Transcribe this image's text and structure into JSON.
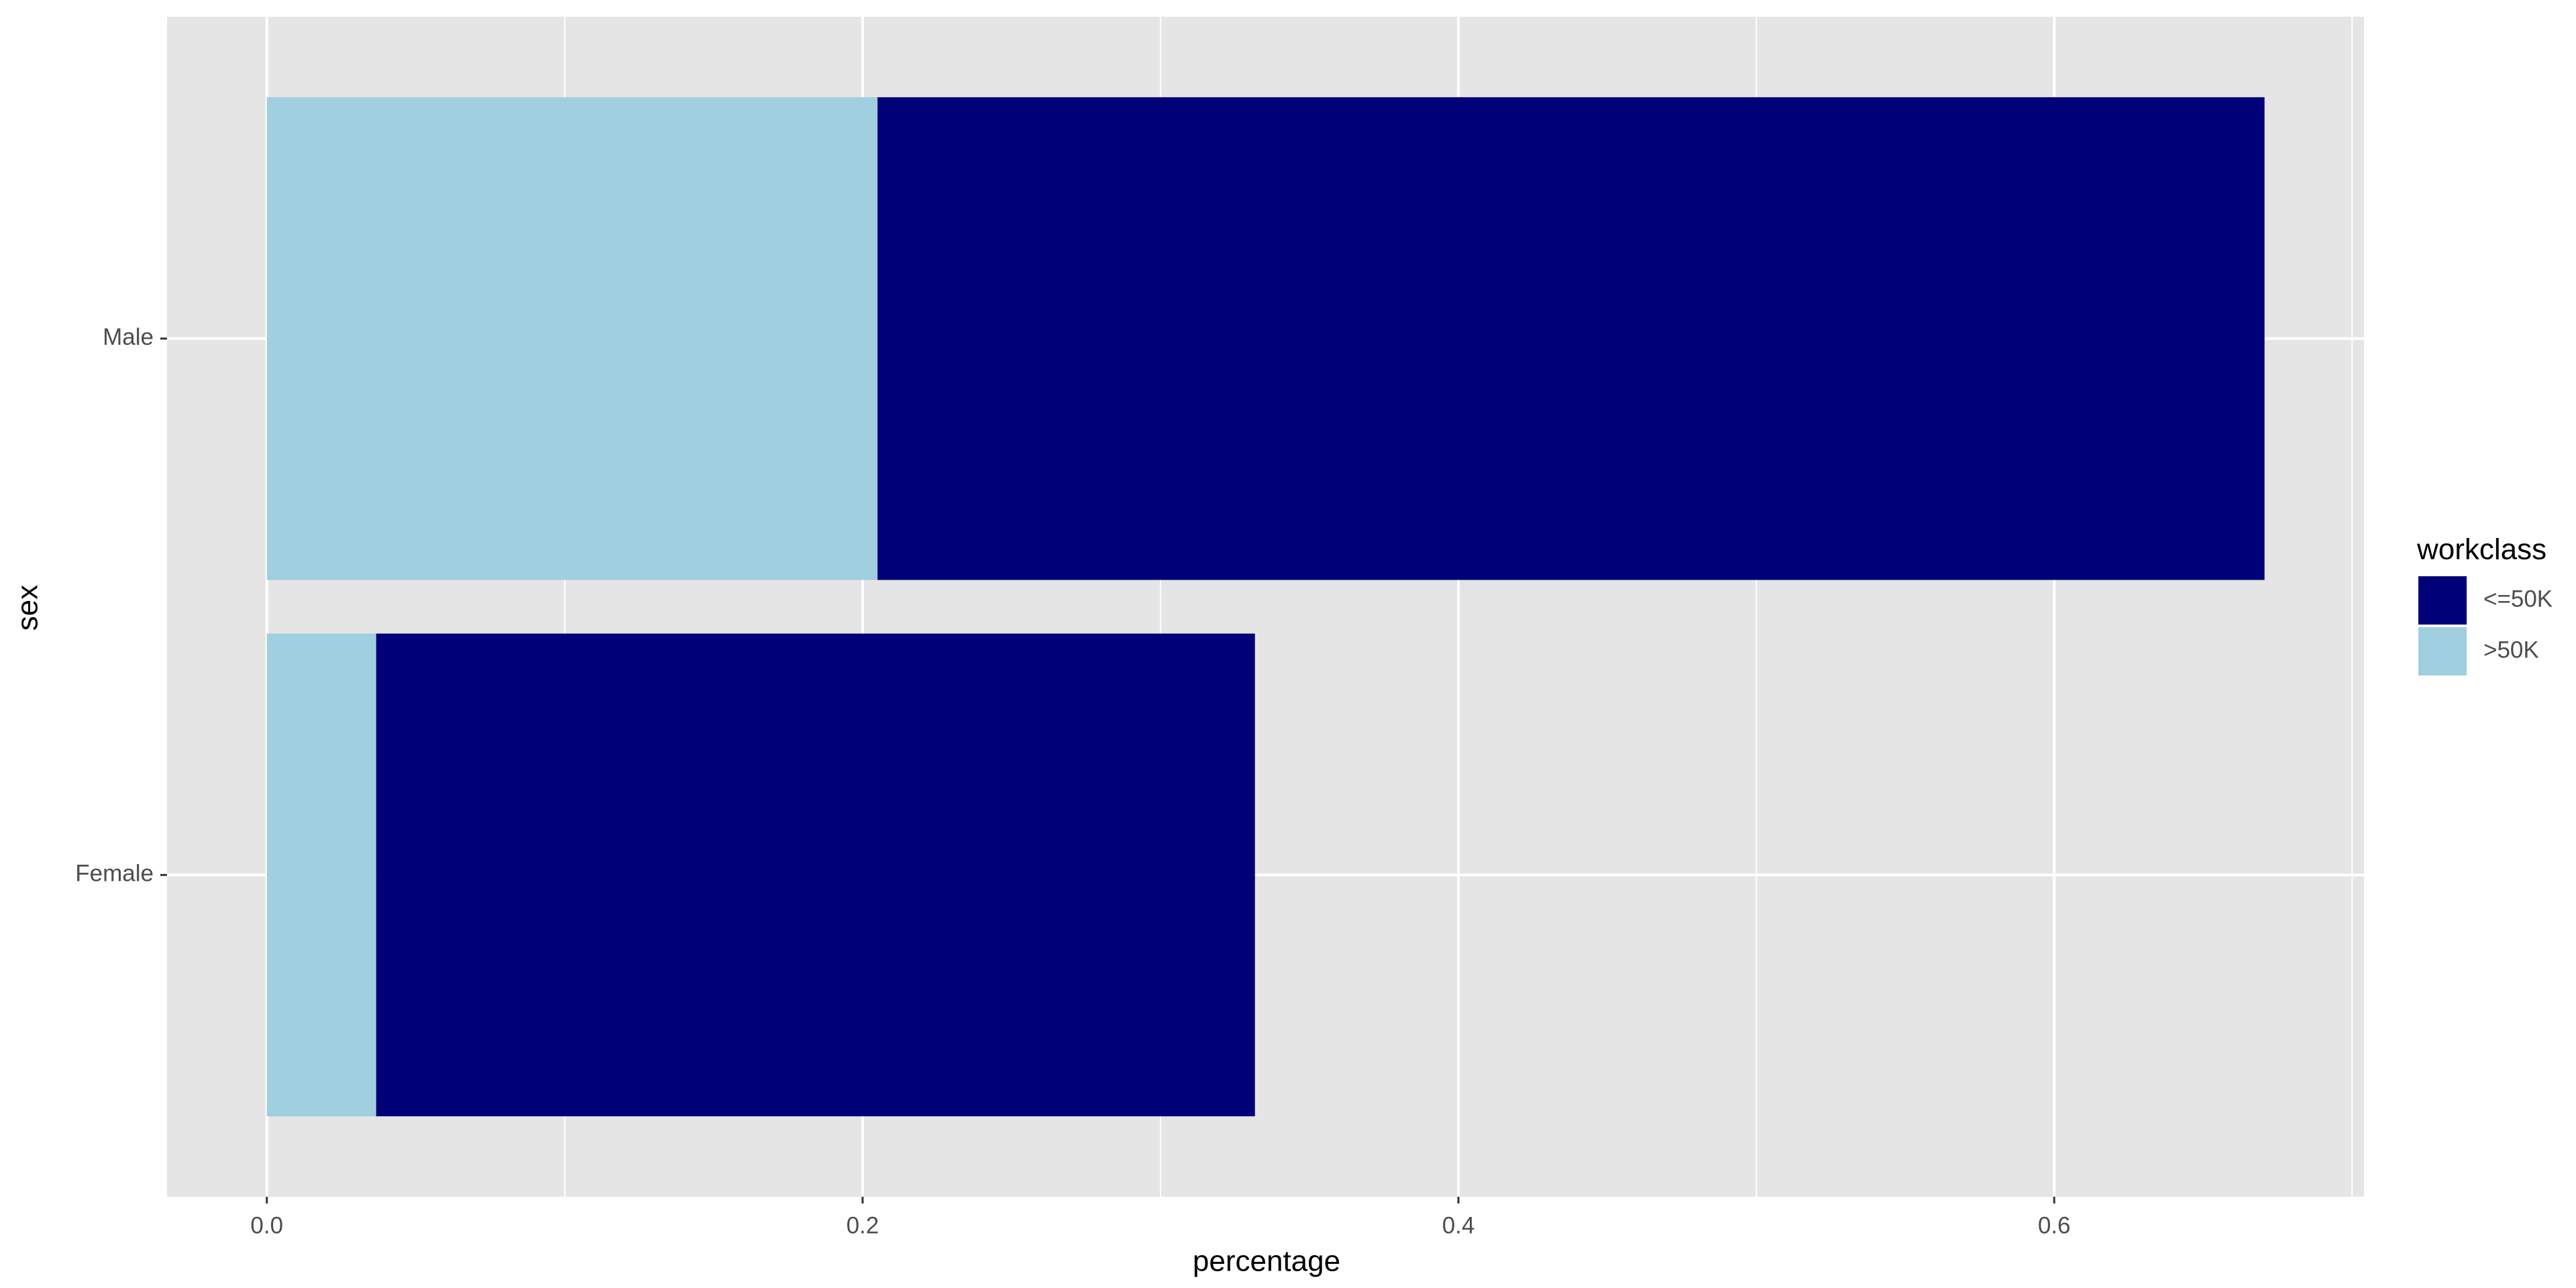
{
  "chart_data": {
    "type": "stacked-bar-horizontal",
    "x_label": "percentage",
    "y_label": "sex",
    "categories": [
      "Female",
      "Male"
    ],
    "legend_title": "workclass",
    "legend": "right",
    "series": [
      {
        "name": "<=50K",
        "color": "#000078",
        "values": [
          0.295,
          0.4656
        ]
      },
      {
        "name": ">50K",
        "color": "#a0cfe0",
        "values": [
          0.0367,
          0.205
        ]
      }
    ],
    "xlim": [
      -0.0335,
      0.704
    ],
    "xticks": [
      {
        "value": 0,
        "label": "0.0"
      },
      0.2,
      0.4,
      0.6
    ],
    "minor_xticks": [
      0.1,
      0.3,
      0.5,
      0.7
    ],
    "grid": true
  }
}
